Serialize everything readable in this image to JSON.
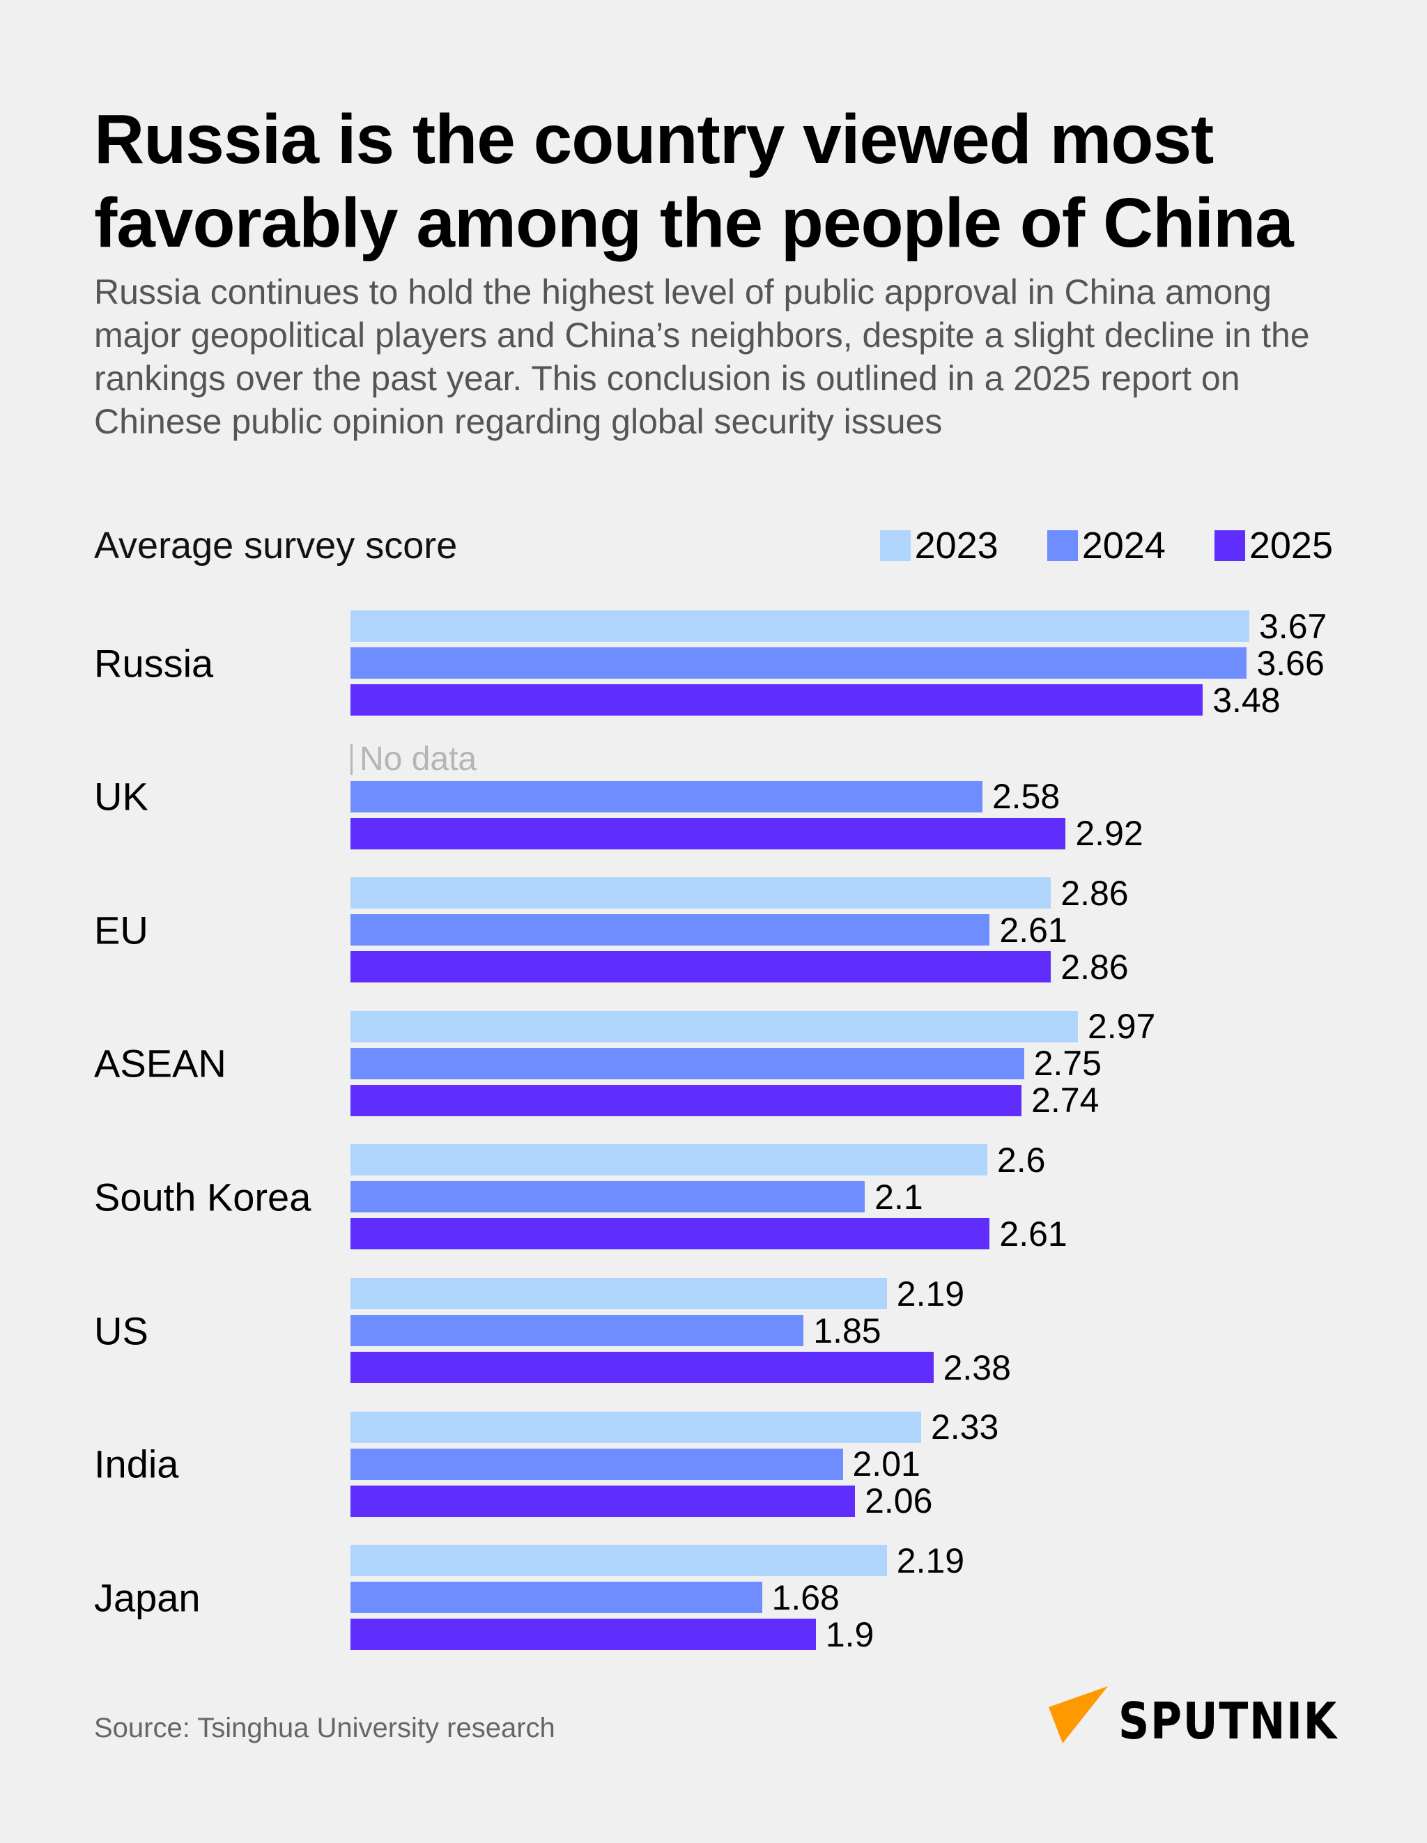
{
  "title": "Russia is the country viewed most favorably among the people of China",
  "subtitle": "Russia continues to hold the highest level of public approval in China among major geopolitical players and China’s neighbors, despite a slight decline in the rankings over the past year. This conclusion is outlined in a 2025 report on Chinese public opinion regarding global security issues",
  "source": "Source: Tsinghua University research",
  "logo_text": "SPUTNIK",
  "colors": {
    "2023": "#b0d5fc",
    "2024": "#6e8dff",
    "2025": "#5f2dfc",
    "logo_accent": "#ff9900"
  },
  "chart_data": {
    "type": "bar",
    "orientation": "horizontal",
    "ylabel": "Average survey score",
    "legend_placement": "top-right",
    "grid": false,
    "xlim": [
      0,
      3.67
    ],
    "no_data_label": "No data",
    "categories": [
      "Russia",
      "UK",
      "EU",
      "ASEAN",
      "South Korea",
      "US",
      "India",
      "Japan"
    ],
    "series": [
      {
        "name": "2023",
        "values": [
          3.67,
          null,
          2.86,
          2.97,
          2.6,
          2.19,
          2.33,
          2.19
        ]
      },
      {
        "name": "2024",
        "values": [
          3.66,
          2.58,
          2.61,
          2.75,
          2.1,
          1.85,
          2.01,
          1.68
        ]
      },
      {
        "name": "2025",
        "values": [
          3.48,
          2.92,
          2.86,
          2.74,
          2.61,
          2.38,
          2.06,
          1.9
        ]
      }
    ]
  }
}
